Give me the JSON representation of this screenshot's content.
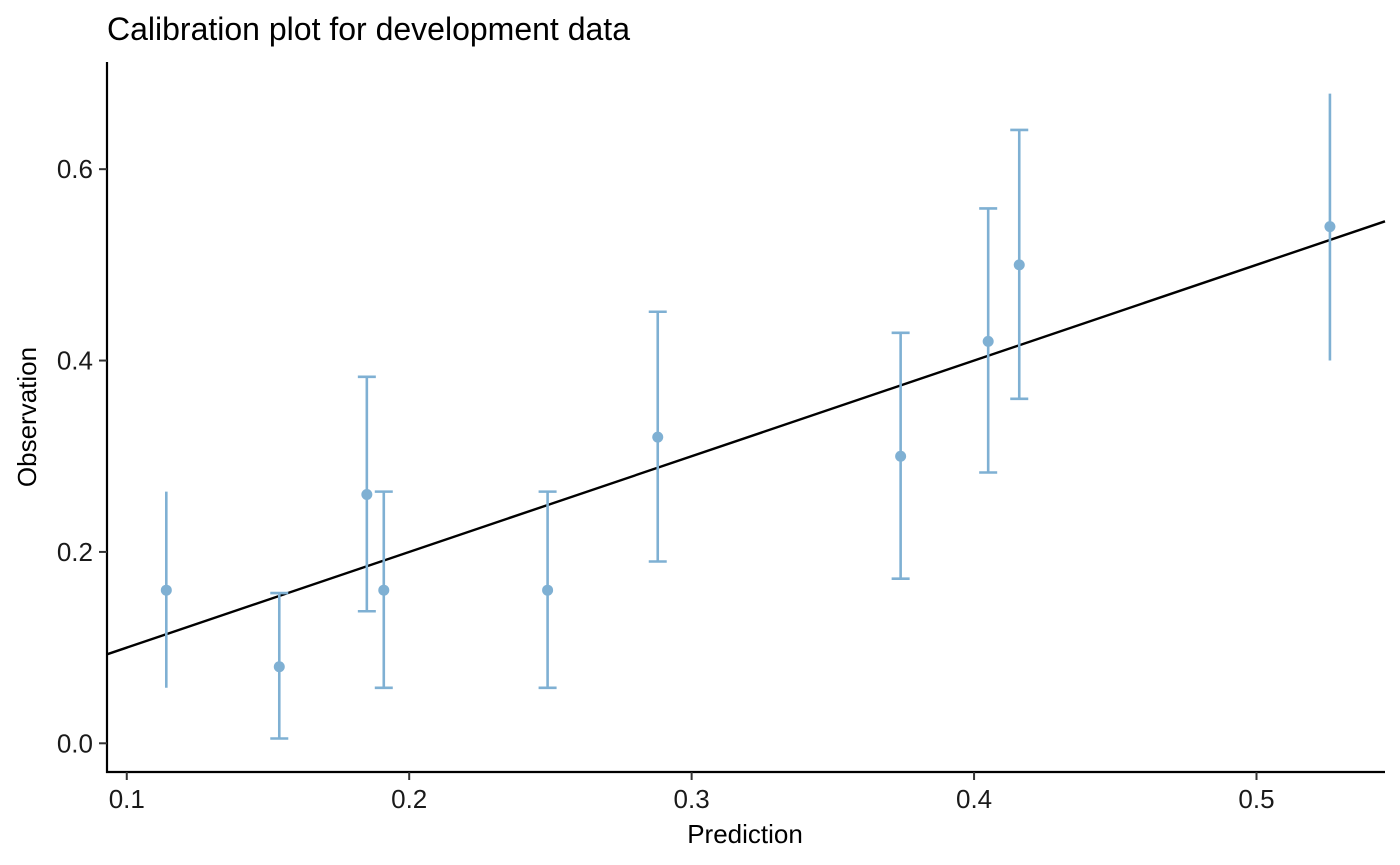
{
  "chart_data": {
    "type": "scatter",
    "title": "Calibration plot for development data",
    "xlabel": "Prediction",
    "ylabel": "Observation",
    "xlim": [
      0.093,
      0.5455
    ],
    "ylim": [
      -0.03,
      0.712
    ],
    "x_ticks": [
      0.1,
      0.2,
      0.3,
      0.4,
      0.5
    ],
    "x_tick_labels": [
      "0.1",
      "0.2",
      "0.3",
      "0.4",
      "0.5"
    ],
    "y_ticks": [
      0.0,
      0.2,
      0.4,
      0.6
    ],
    "y_tick_labels": [
      "0.0",
      "0.2",
      "0.4",
      "0.6"
    ],
    "grid": false,
    "points": [
      {
        "x": 0.114,
        "y": 0.16,
        "lower": 0.058,
        "upper": 0.263,
        "caps": false
      },
      {
        "x": 0.154,
        "y": 0.08,
        "lower": 0.005,
        "upper": 0.157,
        "caps": true
      },
      {
        "x": 0.185,
        "y": 0.26,
        "lower": 0.138,
        "upper": 0.383,
        "caps": true
      },
      {
        "x": 0.191,
        "y": 0.16,
        "lower": 0.058,
        "upper": 0.263,
        "caps": true
      },
      {
        "x": 0.249,
        "y": 0.16,
        "lower": 0.058,
        "upper": 0.263,
        "caps": true
      },
      {
        "x": 0.288,
        "y": 0.32,
        "lower": 0.19,
        "upper": 0.451,
        "caps": true
      },
      {
        "x": 0.374,
        "y": 0.3,
        "lower": 0.172,
        "upper": 0.429,
        "caps": true
      },
      {
        "x": 0.405,
        "y": 0.42,
        "lower": 0.283,
        "upper": 0.559,
        "caps": true
      },
      {
        "x": 0.416,
        "y": 0.5,
        "lower": 0.36,
        "upper": 0.641,
        "caps": true
      },
      {
        "x": 0.526,
        "y": 0.54,
        "lower": 0.4,
        "upper": 0.679,
        "caps": false
      }
    ],
    "reference_line": {
      "intercept": 0,
      "slope": 1
    },
    "point_color": "#7fb0d3",
    "line_color": "#000000"
  }
}
